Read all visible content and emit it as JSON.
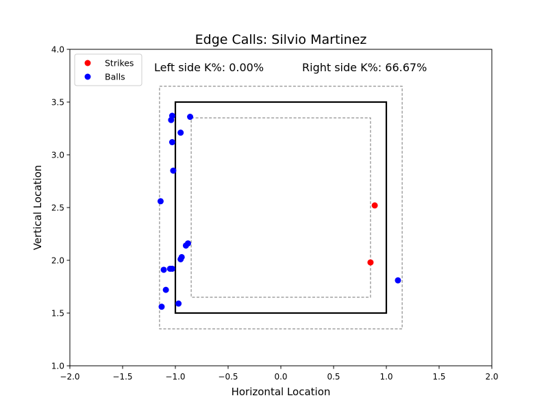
{
  "chart_data": {
    "type": "scatter",
    "title": "Edge Calls: Silvio Martinez",
    "xlabel": "Horizontal Location",
    "ylabel": "Vertical Location",
    "xlim": [
      -2.0,
      2.0
    ],
    "ylim": [
      1.0,
      4.0
    ],
    "xticks": [
      "−2.0",
      "−1.5",
      "−1.0",
      "−0.5",
      "0.0",
      "0.5",
      "1.0",
      "1.5",
      "2.0"
    ],
    "xtick_values": [
      -2.0,
      -1.5,
      -1.0,
      -0.5,
      0.0,
      0.5,
      1.0,
      1.5,
      2.0
    ],
    "yticks": [
      "1.0",
      "1.5",
      "2.0",
      "2.5",
      "3.0",
      "3.5",
      "4.0"
    ],
    "ytick_values": [
      1.0,
      1.5,
      2.0,
      2.5,
      3.0,
      3.5,
      4.0
    ],
    "grid": false,
    "legend_position": "top-left",
    "annotations": {
      "left": "Left side K%: 0.00%",
      "right": "Right side K%: 66.67%"
    },
    "zones": {
      "strike_zone": {
        "x": [
          -1.0,
          1.0
        ],
        "y": [
          1.5,
          3.5
        ],
        "style": "solid",
        "color": "#000000"
      },
      "outer_zone": {
        "x": [
          -1.15,
          1.15
        ],
        "y": [
          1.35,
          3.65
        ],
        "style": "dashed",
        "color": "#808080"
      },
      "inner_zone": {
        "x": [
          -0.85,
          0.85
        ],
        "y": [
          1.65,
          3.35
        ],
        "style": "dashed",
        "color": "#808080"
      }
    },
    "series": [
      {
        "name": "Strikes",
        "color": "#ff0000",
        "points": [
          {
            "x": 0.89,
            "y": 2.52
          },
          {
            "x": 0.85,
            "y": 1.98
          }
        ]
      },
      {
        "name": "Balls",
        "color": "#0000ff",
        "points": [
          {
            "x": -1.03,
            "y": 3.37
          },
          {
            "x": -1.04,
            "y": 3.33
          },
          {
            "x": -0.86,
            "y": 3.36
          },
          {
            "x": -0.95,
            "y": 3.21
          },
          {
            "x": -1.03,
            "y": 3.12
          },
          {
            "x": -1.02,
            "y": 2.85
          },
          {
            "x": -1.14,
            "y": 2.56
          },
          {
            "x": -0.88,
            "y": 2.16
          },
          {
            "x": -0.9,
            "y": 2.14
          },
          {
            "x": -0.94,
            "y": 2.03
          },
          {
            "x": -0.95,
            "y": 2.01
          },
          {
            "x": -1.05,
            "y": 1.92
          },
          {
            "x": -1.03,
            "y": 1.92
          },
          {
            "x": -1.11,
            "y": 1.91
          },
          {
            "x": -1.09,
            "y": 1.72
          },
          {
            "x": -0.97,
            "y": 1.59
          },
          {
            "x": -1.13,
            "y": 1.56
          },
          {
            "x": 1.11,
            "y": 1.81
          }
        ]
      }
    ]
  }
}
